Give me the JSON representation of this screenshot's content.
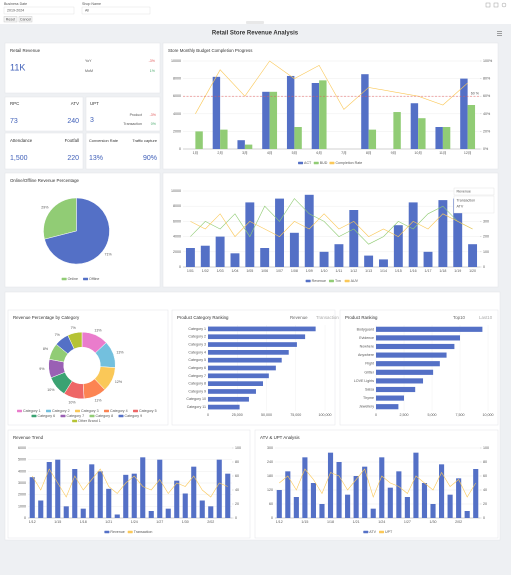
{
  "filters": {
    "business_date_label": "Business Date",
    "business_date_value": "2019-2024",
    "shop_name_label": "Shop Name",
    "shop_name_value": "All",
    "reset": "Reset",
    "cancel": "Cancel"
  },
  "title": "Retail Store  Revenue Analysis",
  "kpis": [
    {
      "label": "Retail Revenue",
      "value": "11K",
      "details": [
        {
          "label": "YoY",
          "value": "-3%"
        },
        {
          "label": "MoM",
          "value": "1%"
        }
      ]
    },
    {
      "label": "RPC",
      "value": "73"
    },
    {
      "label": "ATV",
      "value": "240"
    },
    {
      "label": "UPT",
      "value": "3",
      "details": [
        {
          "label": "Product",
          "value": "-3%"
        },
        {
          "label": "Transaction",
          "value": "0%"
        }
      ]
    },
    {
      "label": "Attendance",
      "value": "1,500"
    },
    {
      "label": "Footfall",
      "value": "220"
    },
    {
      "label": "Conversion Rate",
      "value": "13%"
    },
    {
      "label": "Traffic capture",
      "value": "90%"
    }
  ],
  "chart_data": [
    {
      "type": "combo",
      "title": "Store Monthly Budget Completion Progress",
      "categories": [
        "1月",
        "2月",
        "3月",
        "4月",
        "5月",
        "6月",
        "7月",
        "8月",
        "9月",
        "10月",
        "11月",
        "12月"
      ],
      "series": [
        {
          "name": "ACT",
          "type": "bar",
          "color": "#5470c6",
          "values": [
            0,
            8200,
            1000,
            6500,
            8300,
            7500,
            0,
            8500,
            0,
            5200,
            2500,
            8000
          ]
        },
        {
          "name": "BUD",
          "type": "bar",
          "color": "#91cc75",
          "values": [
            2000,
            2200,
            500,
            6500,
            2500,
            7800,
            0,
            2200,
            4200,
            3500,
            2500,
            5000
          ]
        },
        {
          "name": "Completion Rate",
          "type": "line",
          "axis": "y2",
          "color": "#fac858",
          "values": [
            40,
            90,
            60,
            100,
            80,
            95,
            45,
            70,
            65,
            60,
            50,
            75
          ]
        }
      ],
      "ylim": [
        0,
        10000
      ],
      "yticks": [
        0,
        2000,
        4000,
        6000,
        8000,
        10000
      ],
      "y2lim": [
        0,
        100
      ],
      "y2ticks": [
        {
          "value": 0,
          "label": "0%"
        },
        {
          "value": 20,
          "label": "20%"
        },
        {
          "value": 40,
          "label": "40%"
        },
        {
          "value": 60,
          "label": "60%"
        },
        {
          "value": 80,
          "label": "80%"
        },
        {
          "value": 100,
          "label": "100%"
        }
      ],
      "target_line": {
        "value": 60,
        "label": "60 %",
        "color": "#e05a5a"
      },
      "legend": "bottom"
    },
    {
      "type": "pie",
      "title": "Online/Offline Revenue Percentage",
      "categories": [
        "Online",
        "Offline"
      ],
      "values": [
        29,
        71
      ],
      "value_labels": [
        "29%",
        "71%"
      ],
      "colors": [
        "#91cc75",
        "#5470c6"
      ],
      "legend": "bottom"
    },
    {
      "type": "combo",
      "categories": [
        "1/01",
        "1/02",
        "1/03",
        "1/04",
        "1/05",
        "1/06",
        "1/07",
        "1/08",
        "1/09",
        "1/10",
        "1/11",
        "1/12",
        "1/13",
        "1/14",
        "1/15",
        "1/16",
        "1/17",
        "1/18",
        "1/19",
        "1/20"
      ],
      "series": [
        {
          "name": "Revenue",
          "type": "bar",
          "color": "#5470c6",
          "values": [
            2500,
            2800,
            4000,
            1800,
            8500,
            2500,
            9000,
            4500,
            9500,
            2000,
            3000,
            7500,
            1500,
            1000,
            5500,
            8500,
            2000,
            8800,
            9000,
            3000
          ]
        },
        {
          "name": "Txn",
          "type": "line",
          "axis": "y2",
          "color": "#91cc75",
          "values": [
            200,
            300,
            250,
            350,
            200,
            400,
            300,
            450,
            350,
            300,
            200,
            250,
            150,
            200,
            300,
            250,
            350,
            400,
            300,
            250
          ]
        },
        {
          "name": "AUV",
          "type": "line",
          "axis": "y2",
          "color": "#fac858",
          "values": [
            300,
            250,
            350,
            200,
            300,
            250,
            200,
            300,
            250,
            350,
            250,
            300,
            200,
            250,
            200,
            300,
            250,
            350,
            300,
            250
          ]
        }
      ],
      "ylim": [
        0,
        10000
      ],
      "yticks": [
        0,
        2000,
        4000,
        6000,
        8000,
        10000
      ],
      "y2lim": [
        0,
        500
      ],
      "y2ticks": [
        0,
        100,
        200,
        300,
        400,
        500
      ],
      "dropdown": {
        "selected": "Revenue",
        "options": [
          "Transaction",
          "ATV"
        ]
      },
      "legend": "bottom"
    },
    {
      "type": "pie",
      "donut": true,
      "title": "Revenue Percentage by Category",
      "categories": [
        "Category 1",
        "Category 2",
        "Category 3",
        "Category 4",
        "Category 5",
        "Category 6",
        "Category 7",
        "Category 8",
        "Category 9",
        "Other Brand 1"
      ],
      "values": [
        13,
        13,
        12,
        11,
        10,
        10,
        9,
        8,
        7,
        7
      ],
      "value_labels": [
        "13%",
        "13%",
        "12%",
        "11%",
        "10%",
        "10%",
        "9%",
        "8%",
        "7%",
        "7%"
      ],
      "colors": [
        "#ea7ccc",
        "#73c0de",
        "#fac858",
        "#fc8452",
        "#ee6666",
        "#3ba272",
        "#9a60b4",
        "#91cc75",
        "#5470c6",
        "#b5c334"
      ],
      "legend": "bottom"
    },
    {
      "type": "hbar",
      "title": "Product Category Ranking",
      "tabs": [
        "Revenue",
        "Transaction"
      ],
      "color": "#5470c6",
      "categories": [
        "Category 1",
        "Category 2",
        "Category 3",
        "Category 4",
        "Category 5",
        "Category 6",
        "Category 7",
        "Category 8",
        "Category 9",
        "Category 10",
        "Category 11"
      ],
      "values": [
        92000,
        83000,
        76000,
        69000,
        63000,
        58000,
        52000,
        47000,
        41000,
        35000,
        27000
      ],
      "xlim": [
        0,
        100000
      ],
      "xticks": [
        0,
        {
          "value": 25000,
          "label": "25,000"
        },
        {
          "value": 50000,
          "label": "50,000"
        },
        {
          "value": 75000,
          "label": "75,000"
        },
        {
          "value": 100000,
          "label": "100,000"
        }
      ]
    },
    {
      "type": "hbar",
      "title": "Product  Ranking",
      "tabs": [
        "Top10",
        "Last10"
      ],
      "color": "#5470c6",
      "categories": [
        "Bodyguard",
        "Evidence",
        "Nowhere",
        "Anywhere",
        "Flight",
        "Glitter",
        "LOVE Lights",
        "Salsa",
        "Thyme",
        "Jewellery"
      ],
      "values": [
        9500,
        7500,
        7000,
        6300,
        5700,
        5100,
        4200,
        3500,
        2500,
        2000
      ],
      "xlim": [
        0,
        10000
      ],
      "xticks": [
        0,
        {
          "value": 2500,
          "label": "2,500"
        },
        {
          "value": 5000,
          "label": "5,000"
        },
        {
          "value": 7500,
          "label": "7,500"
        },
        {
          "value": 10000,
          "label": "10,000"
        }
      ]
    },
    {
      "type": "combo",
      "title": "Revenue  Trend",
      "categories": [
        "1/12",
        null,
        null,
        "1/15",
        null,
        null,
        "1/18",
        null,
        null,
        "1/21",
        null,
        null,
        "1/24",
        null,
        null,
        "1/27",
        null,
        null,
        "1/30",
        null,
        null,
        "2/02",
        null,
        null
      ],
      "series": [
        {
          "name": "Revenue",
          "type": "bar",
          "color": "#5470c6",
          "values": [
            3500,
            1500,
            4800,
            5000,
            1000,
            4200,
            800,
            4600,
            4000,
            2500,
            300,
            3700,
            3800,
            5200,
            600,
            5000,
            800,
            3200,
            2100,
            4400,
            1500,
            1000,
            5000,
            3800
          ]
        },
        {
          "name": "Transaction",
          "type": "line",
          "axis": "y2",
          "color": "#fac858",
          "values": [
            60,
            40,
            70,
            50,
            30,
            60,
            40,
            55,
            70,
            45,
            35,
            50,
            60,
            45,
            40,
            55,
            35,
            50,
            45,
            60,
            40,
            30,
            50,
            45
          ]
        }
      ],
      "ylim": [
        0,
        6000
      ],
      "yticks": [
        0,
        1000,
        2000,
        3000,
        4000,
        5000,
        6000
      ],
      "y2lim": [
        0,
        100
      ],
      "y2ticks": [
        0,
        20,
        40,
        60,
        80,
        100
      ],
      "legend": "bottom"
    },
    {
      "type": "combo",
      "title": "ATV & UPT Analysis",
      "categories": [
        "1/12",
        null,
        null,
        "1/15",
        null,
        null,
        "1/18",
        null,
        null,
        "1/21",
        null,
        null,
        "1/24",
        null,
        null,
        "1/27",
        null,
        null,
        "1/30",
        null,
        null,
        "2/02",
        null,
        null
      ],
      "series": [
        {
          "name": "ATV",
          "type": "bar",
          "color": "#5470c6",
          "values": [
            120,
            200,
            90,
            260,
            150,
            60,
            280,
            240,
            100,
            180,
            220,
            40,
            260,
            130,
            200,
            90,
            280,
            150,
            60,
            230,
            100,
            170,
            30,
            210
          ]
        },
        {
          "name": "UPT",
          "type": "line",
          "axis": "y2",
          "color": "#fac858",
          "values": [
            50,
            60,
            40,
            70,
            55,
            35,
            65,
            60,
            40,
            55,
            70,
            30,
            60,
            50,
            45,
            35,
            60,
            50,
            40,
            65,
            45,
            55,
            30,
            50
          ]
        }
      ],
      "ylim": [
        0,
        300
      ],
      "yticks": [
        0,
        60,
        120,
        180,
        240,
        300
      ],
      "y2lim": [
        0,
        100
      ],
      "y2ticks": [
        0,
        20,
        40,
        60,
        80,
        100
      ],
      "legend": "bottom"
    }
  ]
}
